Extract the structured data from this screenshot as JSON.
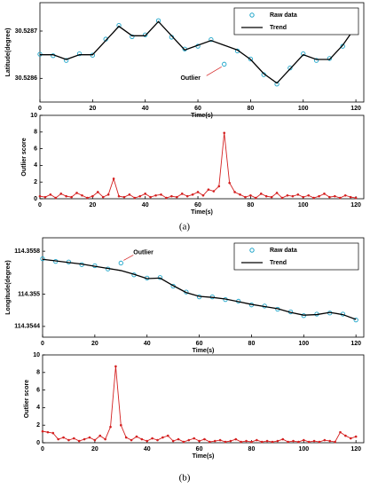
{
  "captions": [
    "(a)",
    "(b)"
  ],
  "chart_data": [
    {
      "type": "line",
      "ylabel": "Latitude(degree)",
      "xlabel": "Time(s)",
      "legend": "upper right",
      "annotation": "Outlier",
      "xlim": [
        0,
        123
      ],
      "xticks": [
        0,
        20,
        40,
        60,
        80,
        100,
        120
      ],
      "ylim": [
        30.52855,
        30.52876
      ],
      "yticks": [
        30.5286,
        30.5287
      ],
      "x": [
        0,
        5,
        10,
        15,
        20,
        25,
        30,
        35,
        40,
        45,
        50,
        55,
        60,
        65,
        70,
        75,
        80,
        85,
        90,
        95,
        100,
        105,
        110,
        115,
        120
      ],
      "series": [
        {
          "name": "Raw data",
          "type": "scatter",
          "color": "#1aa3c8",
          "values": [
            30.528651,
            30.528648,
            30.528638,
            30.528652,
            30.528649,
            30.528683,
            30.528712,
            30.528688,
            30.528692,
            30.528722,
            30.528687,
            30.528662,
            30.528668,
            30.528682,
            30.52863,
            30.528658,
            30.528641,
            30.528608,
            30.528588,
            30.528622,
            30.528652,
            30.528638,
            30.528642,
            30.528668,
            30.528712
          ]
        },
        {
          "name": "Trend",
          "type": "line",
          "color": "#000000",
          "values": [
            30.52865,
            30.52865,
            30.52864,
            30.52865,
            30.52865,
            30.52868,
            30.52871,
            30.52869,
            30.52869,
            30.52872,
            30.52869,
            30.52866,
            30.52867,
            30.52868,
            30.52867,
            30.52866,
            30.52864,
            30.52861,
            30.52859,
            30.52862,
            30.52865,
            30.52864,
            30.52864,
            30.52867,
            30.52871
          ]
        }
      ]
    },
    {
      "type": "line",
      "ylabel": "Outlier score",
      "xlabel": "Time(s)",
      "xlim": [
        0,
        123
      ],
      "xticks": [
        0,
        20,
        40,
        60,
        80,
        100,
        120
      ],
      "ylim": [
        0,
        10
      ],
      "yticks": [
        0,
        2,
        4,
        6,
        8,
        10
      ],
      "x": [
        0,
        2,
        4,
        6,
        8,
        10,
        12,
        14,
        16,
        18,
        20,
        22,
        24,
        26,
        28,
        30,
        32,
        34,
        36,
        38,
        40,
        42,
        44,
        46,
        48,
        50,
        52,
        54,
        56,
        58,
        60,
        62,
        64,
        66,
        68,
        70,
        72,
        74,
        76,
        78,
        80,
        82,
        84,
        86,
        88,
        90,
        92,
        94,
        96,
        98,
        100,
        102,
        104,
        106,
        108,
        110,
        112,
        114,
        116,
        118,
        120
      ],
      "series": [
        {
          "type": "line",
          "marker": true,
          "color": "#d42020",
          "values": [
            0.3,
            0.2,
            0.5,
            0.1,
            0.6,
            0.3,
            0.2,
            0.7,
            0.4,
            0.1,
            0.3,
            0.8,
            0.2,
            0.5,
            2.4,
            0.3,
            0.2,
            0.5,
            0.1,
            0.3,
            0.6,
            0.2,
            0.4,
            0.5,
            0.1,
            0.3,
            0.2,
            0.6,
            0.3,
            0.5,
            0.8,
            0.4,
            1.1,
            0.9,
            1.5,
            7.9,
            1.9,
            0.8,
            0.5,
            0.2,
            0.4,
            0.1,
            0.6,
            0.3,
            0.2,
            0.7,
            0.1,
            0.4,
            0.3,
            0.5,
            0.2,
            0.4,
            0.1,
            0.3,
            0.6,
            0.2,
            0.3,
            0.1,
            0.4,
            0.2,
            0.1
          ]
        }
      ]
    },
    {
      "type": "line",
      "ylabel": "Longitude(degree)",
      "xlabel": "Time(s)",
      "legend": "upper right",
      "annotation": "Outlier",
      "xlim": [
        0,
        123
      ],
      "xticks": [
        0,
        20,
        40,
        60,
        80,
        100,
        120
      ],
      "ylim": [
        114.3542,
        114.35605
      ],
      "yticks": [
        114.3544,
        114.355,
        114.3558
      ],
      "x": [
        0,
        5,
        10,
        15,
        20,
        25,
        30,
        35,
        40,
        45,
        50,
        55,
        60,
        65,
        70,
        75,
        80,
        85,
        90,
        95,
        100,
        105,
        110,
        115,
        120
      ],
      "series": [
        {
          "name": "Raw data",
          "type": "scatter",
          "color": "#1aa3c8",
          "values": [
            114.35566,
            114.35561,
            114.3556,
            114.35555,
            114.35553,
            114.35547,
            114.35558,
            114.35536,
            114.3553,
            114.35531,
            114.35515,
            114.35504,
            114.35495,
            114.35495,
            114.3549,
            114.35487,
            114.3548,
            114.35478,
            114.35472,
            114.35467,
            114.3546,
            114.35463,
            114.35465,
            114.35463,
            114.35452
          ]
        },
        {
          "name": "Trend",
          "type": "line",
          "color": "#000000",
          "values": [
            114.35565,
            114.35562,
            114.35559,
            114.35556,
            114.35552,
            114.35548,
            114.35544,
            114.35537,
            114.35529,
            114.3553,
            114.35516,
            114.35503,
            114.35496,
            114.35494,
            114.35491,
            114.35486,
            114.35481,
            114.35477,
            114.35473,
            114.35466,
            114.35461,
            114.35462,
            114.35466,
            114.35462,
            114.35453
          ]
        }
      ]
    },
    {
      "type": "line",
      "ylabel": "Outlier score",
      "xlabel": "Time(s)",
      "xlim": [
        0,
        123
      ],
      "xticks": [
        0,
        20,
        40,
        60,
        80,
        100,
        120
      ],
      "ylim": [
        0,
        10
      ],
      "yticks": [
        0,
        2,
        4,
        6,
        8,
        10
      ],
      "x": [
        0,
        2,
        4,
        6,
        8,
        10,
        12,
        14,
        16,
        18,
        20,
        22,
        24,
        26,
        28,
        30,
        32,
        34,
        36,
        38,
        40,
        42,
        44,
        46,
        48,
        50,
        52,
        54,
        56,
        58,
        60,
        62,
        64,
        66,
        68,
        70,
        72,
        74,
        76,
        78,
        80,
        82,
        84,
        86,
        88,
        90,
        92,
        94,
        96,
        98,
        100,
        102,
        104,
        106,
        108,
        110,
        112,
        114,
        116,
        118,
        120
      ],
      "series": [
        {
          "type": "line",
          "marker": true,
          "color": "#d42020",
          "values": [
            1.3,
            1.2,
            1.1,
            0.4,
            0.6,
            0.3,
            0.5,
            0.2,
            0.4,
            0.6,
            0.3,
            0.8,
            0.4,
            1.8,
            8.7,
            2.0,
            0.6,
            0.3,
            0.7,
            0.4,
            0.2,
            0.5,
            0.3,
            0.6,
            0.8,
            0.2,
            0.4,
            0.1,
            0.3,
            0.5,
            0.2,
            0.4,
            0.1,
            0.2,
            0.3,
            0.1,
            0.2,
            0.4,
            0.1,
            0.2,
            0.1,
            0.3,
            0.1,
            0.2,
            0.1,
            0.2,
            0.4,
            0.1,
            0.2,
            0.1,
            0.3,
            0.1,
            0.2,
            0.1,
            0.3,
            0.2,
            0.1,
            1.2,
            0.8,
            0.5,
            0.7
          ]
        }
      ]
    }
  ]
}
